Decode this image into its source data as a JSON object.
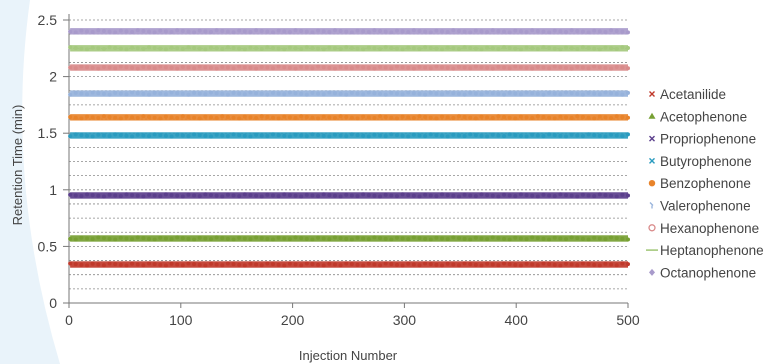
{
  "chart_data": {
    "type": "scatter",
    "title": "",
    "xlabel": "Injection Number",
    "ylabel": "Retention Time (min)",
    "xlim": [
      0,
      500
    ],
    "ylim": [
      0,
      2.5
    ],
    "x_ticks": [
      "0",
      "100",
      "200",
      "300",
      "400",
      "500"
    ],
    "y_ticks": [
      "0",
      "0.5",
      "1",
      "1.5",
      "2",
      "2.5"
    ],
    "grid": "horizontal dotted",
    "legend_position": "right",
    "series": [
      {
        "name": "Acetanilide",
        "marker": "x",
        "color": "#c0392b",
        "retention_time": 0.34
      },
      {
        "name": "Acetophenone",
        "marker": "triangle",
        "color": "#77a033",
        "retention_time": 0.57
      },
      {
        "name": "Propriophenone",
        "marker": "x",
        "color": "#5b3f8c",
        "retention_time": 0.95
      },
      {
        "name": "Butyrophenone",
        "marker": "x",
        "color": "#2a9bbf",
        "retention_time": 1.48
      },
      {
        "name": "Benzophenone",
        "marker": "circle",
        "color": "#e8832a",
        "retention_time": 1.64
      },
      {
        "name": "Valerophenone",
        "marker": "dash",
        "color": "#96b2db",
        "retention_time": 1.85
      },
      {
        "name": "Hexanophenone",
        "marker": "circle-open",
        "color": "#d98b8b",
        "retention_time": 2.08
      },
      {
        "name": "Heptanophenone",
        "marker": "line",
        "color": "#a5c97e",
        "retention_time": 2.25
      },
      {
        "name": "Octanophenone",
        "marker": "diamond",
        "color": "#a89acb",
        "retention_time": 2.4
      }
    ],
    "injections": {
      "start": 1,
      "end": 500
    }
  }
}
